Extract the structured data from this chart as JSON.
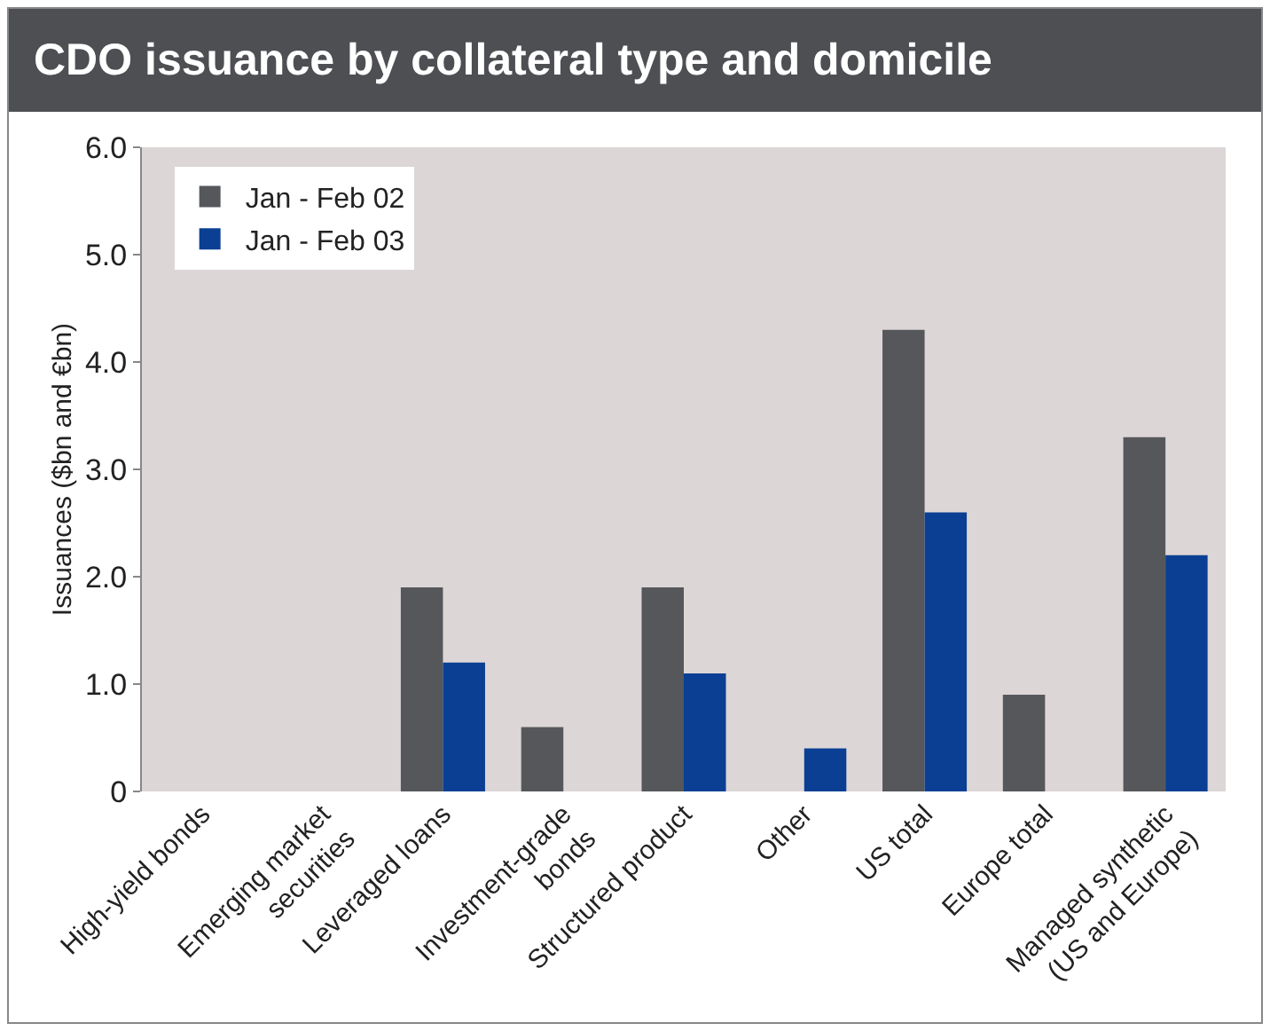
{
  "chart_data": {
    "type": "bar",
    "title": "CDO issuance by collateral type and domicile",
    "ylabel": "Issuances ($bn and €bn)",
    "categories": [
      "High-yield bonds",
      "Emerging market\nsecurities",
      "Leveraged loans",
      "Investment-grade\nbonds",
      "Structured product",
      "Other",
      "US total",
      "Europe total",
      "Managed synthetic\n(US and Europe)"
    ],
    "series": [
      {
        "name": "Jan - Feb 02",
        "color": "#55575b",
        "values": [
          0,
          0,
          1.9,
          0.6,
          1.9,
          0,
          4.3,
          0.9,
          3.3
        ]
      },
      {
        "name": "Jan - Feb 03",
        "color": "#0a3f94",
        "values": [
          0,
          0,
          1.2,
          0,
          1.1,
          0.4,
          2.6,
          0,
          2.2
        ]
      }
    ],
    "ylim": [
      0,
      6
    ],
    "yticks": [
      0,
      {
        "value": 1,
        "label": "1.0"
      },
      {
        "value": 2,
        "label": "2.0"
      },
      {
        "value": 3,
        "label": "3.0"
      },
      {
        "value": 4,
        "label": "4.0"
      },
      {
        "value": 5,
        "label": "5.0"
      },
      {
        "value": 6,
        "label": "6.0"
      }
    ],
    "grid": false,
    "legend": "top left"
  }
}
